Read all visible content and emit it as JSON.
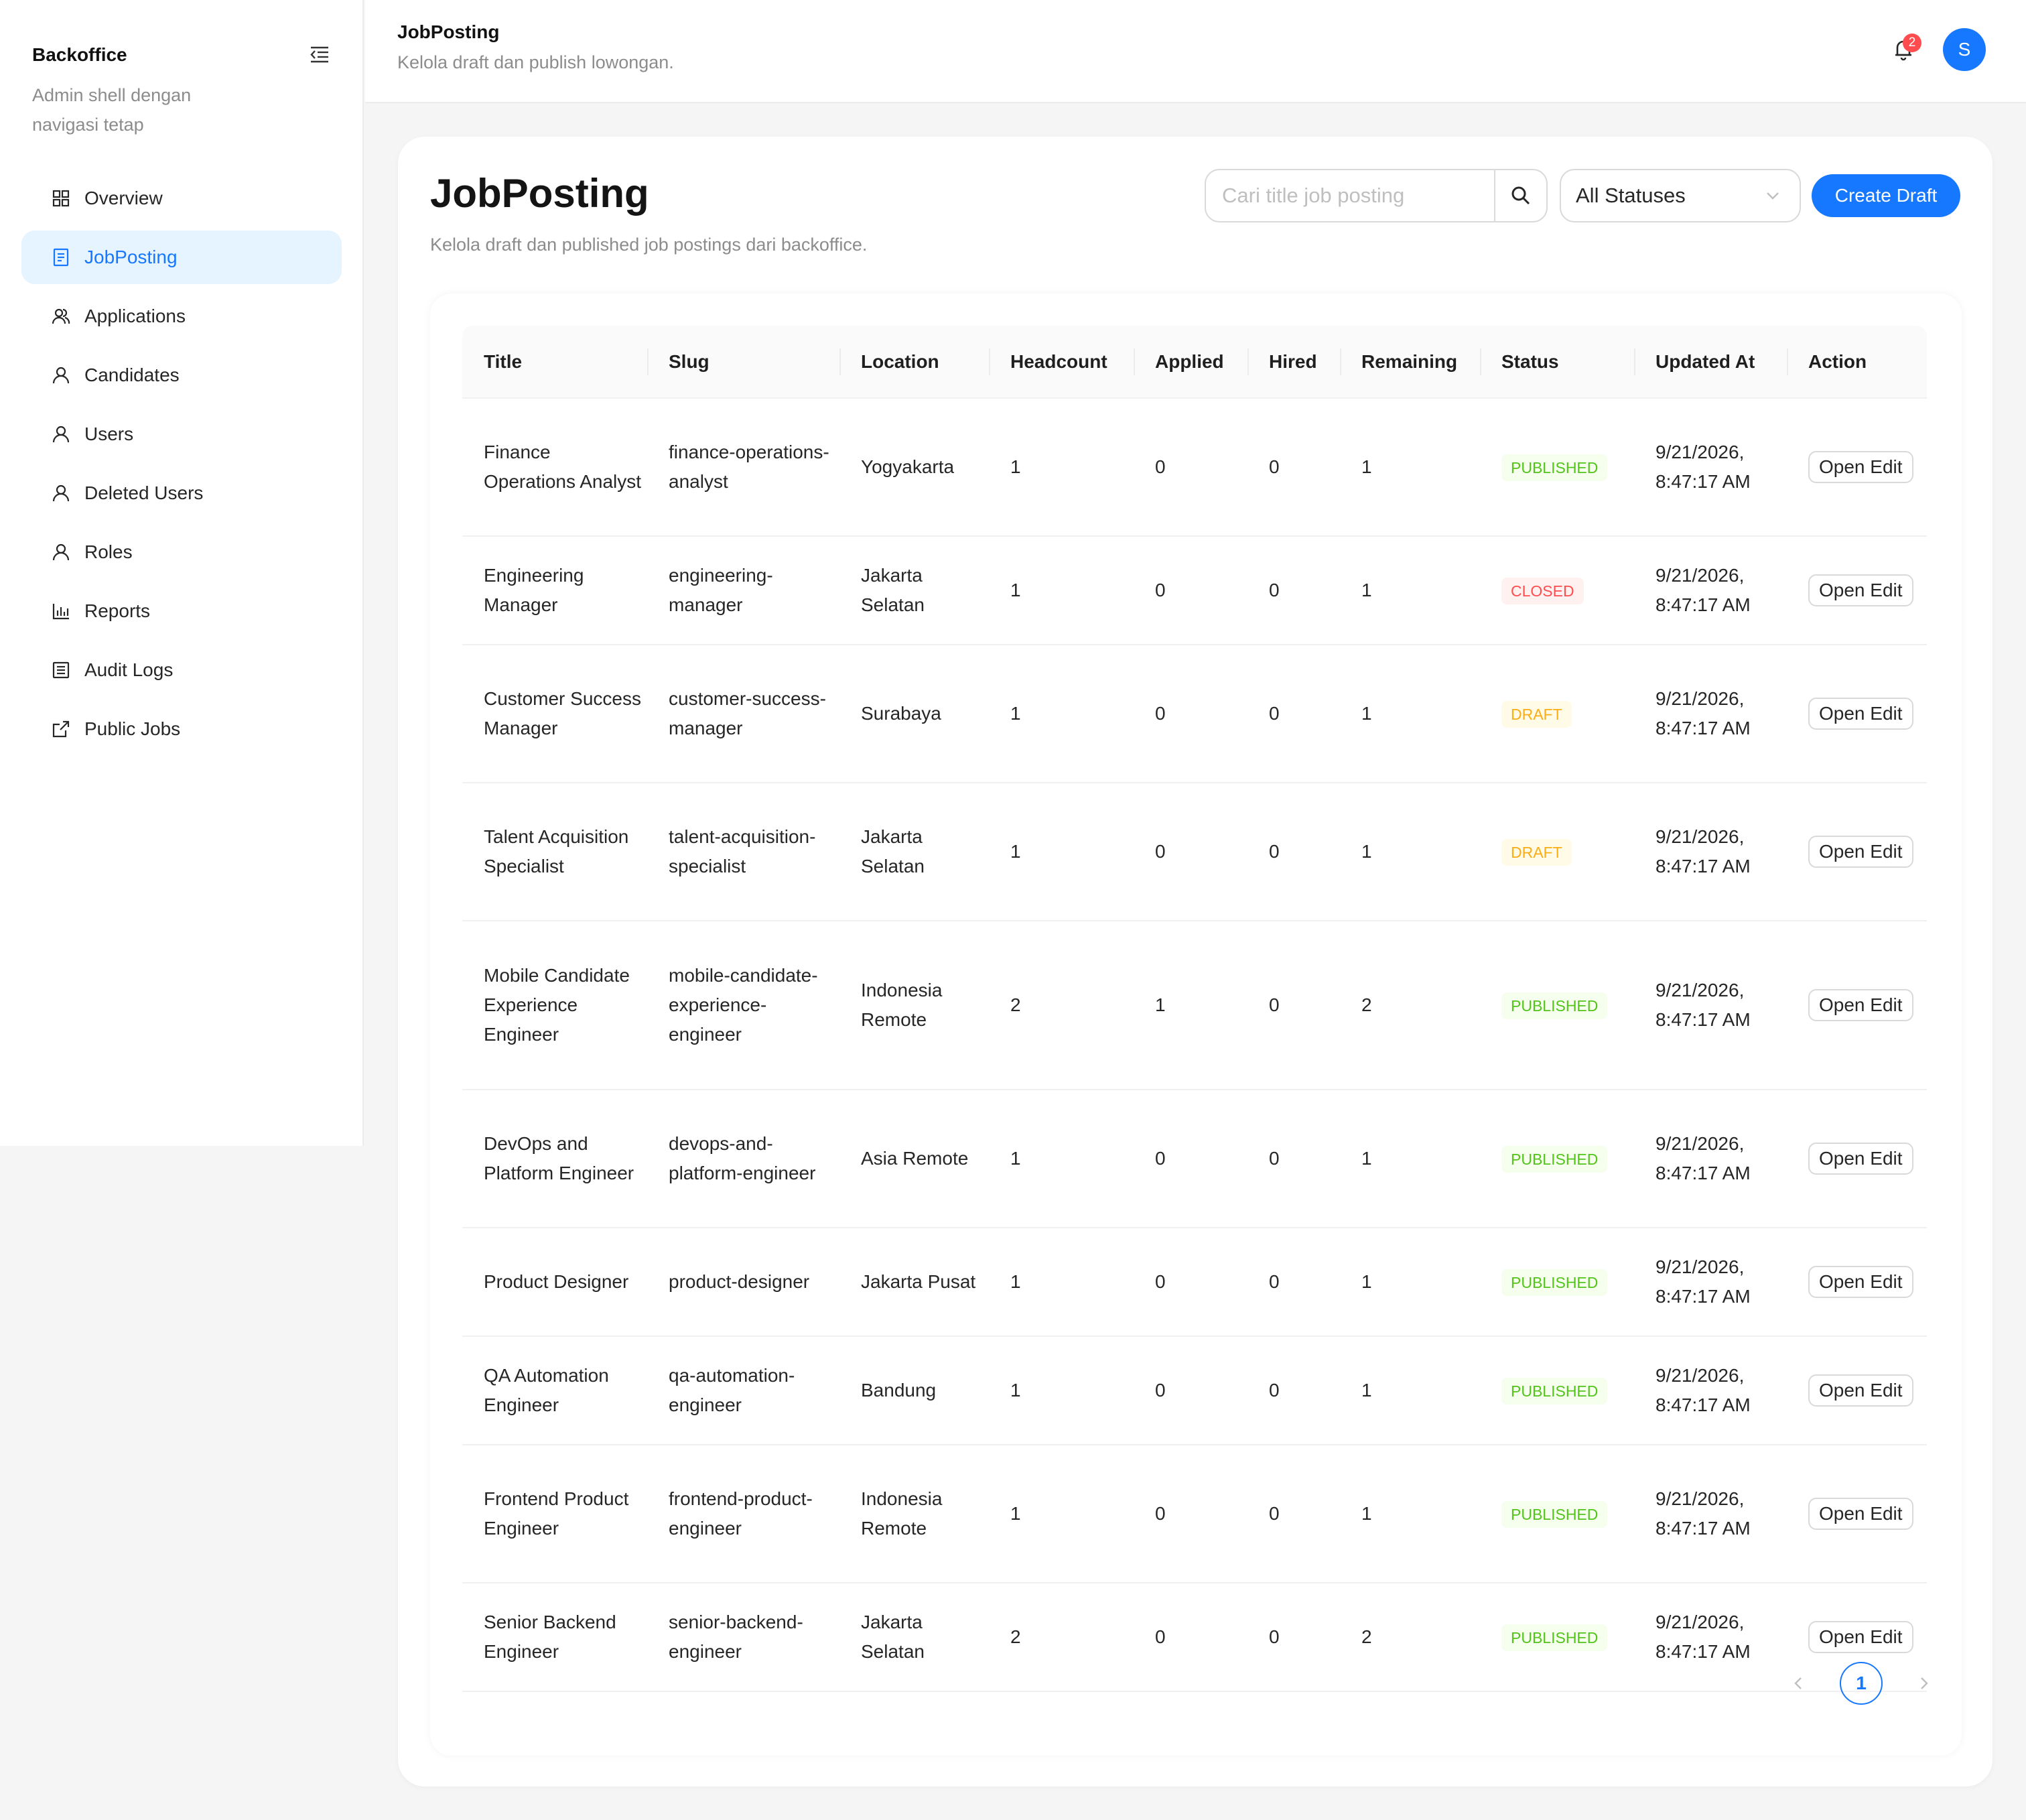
{
  "sidebar": {
    "brand": "Backoffice",
    "subtitle": "Admin shell dengan navigasi tetap",
    "items": [
      {
        "label": "Overview",
        "icon": "grid-icon"
      },
      {
        "label": "JobPosting",
        "icon": "document-icon",
        "active": true
      },
      {
        "label": "Applications",
        "icon": "users-icon"
      },
      {
        "label": "Candidates",
        "icon": "user-icon"
      },
      {
        "label": "Users",
        "icon": "user-icon"
      },
      {
        "label": "Deleted Users",
        "icon": "user-icon"
      },
      {
        "label": "Roles",
        "icon": "user-icon"
      },
      {
        "label": "Reports",
        "icon": "bar-chart-icon"
      },
      {
        "label": "Audit Logs",
        "icon": "list-icon"
      },
      {
        "label": "Public Jobs",
        "icon": "external-link-icon"
      }
    ]
  },
  "header": {
    "title": "JobPosting",
    "subtitle": "Kelola draft dan publish lowongan.",
    "notification_count": "2",
    "avatar_initial": "S"
  },
  "main": {
    "title": "JobPosting",
    "subtitle": "Kelola draft dan published job postings dari backoffice.",
    "search_placeholder": "Cari title job posting",
    "status_filter": "All Statuses",
    "create_label": "Create Draft"
  },
  "table": {
    "columns": [
      "Title",
      "Slug",
      "Location",
      "Headcount",
      "Applied",
      "Hired",
      "Remaining",
      "Status",
      "Updated At",
      "Action"
    ],
    "rows": [
      {
        "title": "Finance Operations Analyst",
        "slug": "finance-operations-analyst",
        "location": "Yogyakarta",
        "headcount": "1",
        "applied": "0",
        "hired": "0",
        "remaining": "1",
        "status": "PUBLISHED",
        "updated": "9/21/2026, 8:47:17 AM",
        "action": "Open Edit"
      },
      {
        "title": "Engineering Manager",
        "slug": "engineering-manager",
        "location": "Jakarta Selatan",
        "headcount": "1",
        "applied": "0",
        "hired": "0",
        "remaining": "1",
        "status": "CLOSED",
        "updated": "9/21/2026, 8:47:17 AM",
        "action": "Open Edit"
      },
      {
        "title": "Customer Success Manager",
        "slug": "customer-success-manager",
        "location": "Surabaya",
        "headcount": "1",
        "applied": "0",
        "hired": "0",
        "remaining": "1",
        "status": "DRAFT",
        "updated": "9/21/2026, 8:47:17 AM",
        "action": "Open Edit"
      },
      {
        "title": "Talent Acquisition Specialist",
        "slug": "talent-acquisition-specialist",
        "location": "Jakarta Selatan",
        "headcount": "1",
        "applied": "0",
        "hired": "0",
        "remaining": "1",
        "status": "DRAFT",
        "updated": "9/21/2026, 8:47:17 AM",
        "action": "Open Edit"
      },
      {
        "title": "Mobile Candidate Experience Engineer",
        "slug": "mobile-candidate-experience-engineer",
        "location": "Indonesia Remote",
        "headcount": "2",
        "applied": "1",
        "hired": "0",
        "remaining": "2",
        "status": "PUBLISHED",
        "updated": "9/21/2026, 8:47:17 AM",
        "action": "Open Edit"
      },
      {
        "title": "DevOps and Platform Engineer",
        "slug": "devops-and-platform-engineer",
        "location": "Asia Remote",
        "headcount": "1",
        "applied": "0",
        "hired": "0",
        "remaining": "1",
        "status": "PUBLISHED",
        "updated": "9/21/2026, 8:47:17 AM",
        "action": "Open Edit"
      },
      {
        "title": "Product Designer",
        "slug": "product-designer",
        "location": "Jakarta Pusat",
        "headcount": "1",
        "applied": "0",
        "hired": "0",
        "remaining": "1",
        "status": "PUBLISHED",
        "updated": "9/21/2026, 8:47:17 AM",
        "action": "Open Edit"
      },
      {
        "title": "QA Automation Engineer",
        "slug": "qa-automation-engineer",
        "location": "Bandung",
        "headcount": "1",
        "applied": "0",
        "hired": "0",
        "remaining": "1",
        "status": "PUBLISHED",
        "updated": "9/21/2026, 8:47:17 AM",
        "action": "Open Edit"
      },
      {
        "title": "Frontend Product Engineer",
        "slug": "frontend-product-engineer",
        "location": "Indonesia Remote",
        "headcount": "1",
        "applied": "0",
        "hired": "0",
        "remaining": "1",
        "status": "PUBLISHED",
        "updated": "9/21/2026, 8:47:17 AM",
        "action": "Open Edit"
      },
      {
        "title": "Senior Backend Engineer",
        "slug": "senior-backend-engineer",
        "location": "Jakarta Selatan",
        "headcount": "2",
        "applied": "0",
        "hired": "0",
        "remaining": "2",
        "status": "PUBLISHED",
        "updated": "9/21/2026, 8:47:17 AM",
        "action": "Open Edit"
      }
    ]
  },
  "pagination": {
    "current": "1"
  },
  "colors": {
    "accent": "#1677ff",
    "published": "#52c41a",
    "closed": "#ff4d4f",
    "draft": "#faad14"
  }
}
